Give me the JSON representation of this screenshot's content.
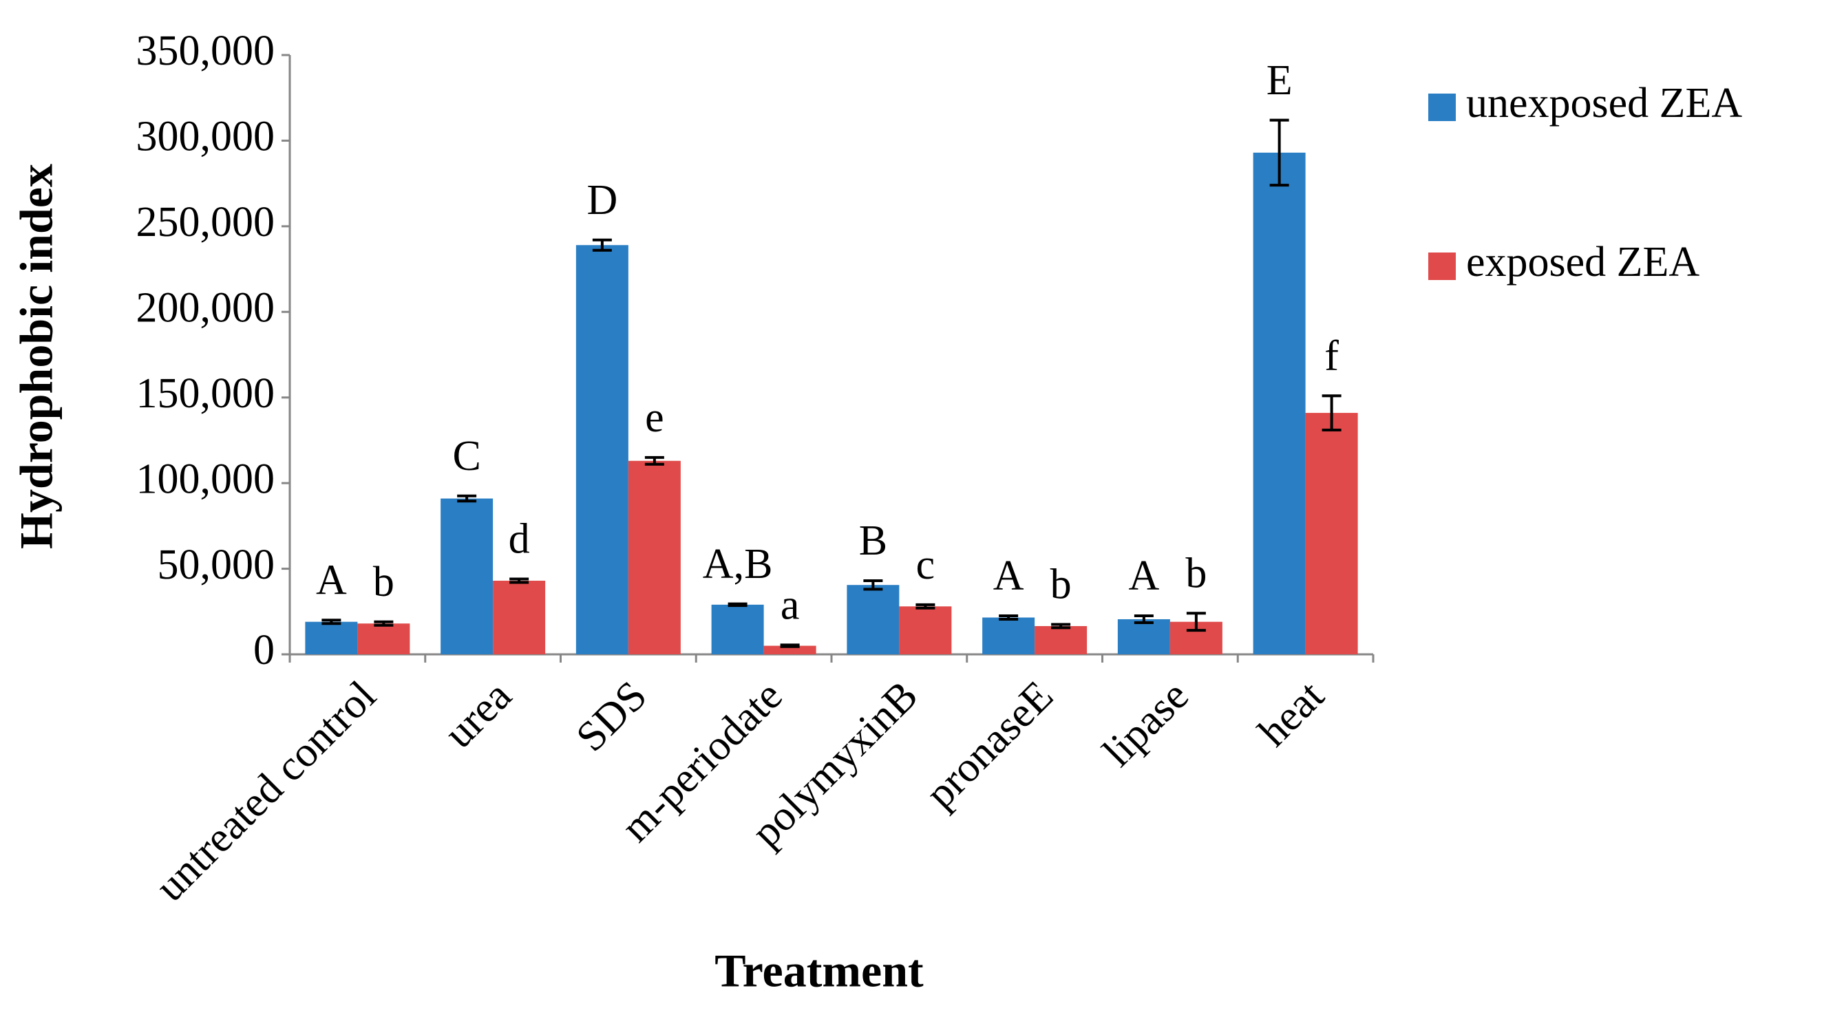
{
  "chart_data": {
    "type": "bar",
    "x_label": "Treatment",
    "y_label": "Hydrophobic index",
    "categories": [
      "untreated control",
      "urea",
      "SDS",
      "m-periodate",
      "polymyxinB",
      "pronaseE",
      "lipase",
      "heat"
    ],
    "series": [
      {
        "name": "unexposed ZEA",
        "color": "#2a7fc4",
        "values": [
          19000,
          91000,
          239000,
          29000,
          40500,
          21500,
          20500,
          293000
        ],
        "errors": [
          1000,
          1500,
          3000,
          500,
          2500,
          1000,
          2000,
          19000
        ],
        "letters": [
          "A",
          "C",
          "D",
          "A,B",
          "B",
          "A",
          "A",
          "E"
        ]
      },
      {
        "name": "exposed ZEA",
        "color": "#e04a4a",
        "values": [
          18000,
          43000,
          113000,
          5000,
          28000,
          16500,
          19000,
          141000
        ],
        "errors": [
          1000,
          1000,
          2000,
          500,
          1000,
          1000,
          5000,
          10000
        ],
        "letters": [
          "b",
          "d",
          "e",
          "a",
          "c",
          "b",
          "b",
          "f"
        ]
      }
    ],
    "ylim": [
      0,
      350000
    ],
    "yticks": [
      0,
      {
        "value": 50000,
        "label": "50,000"
      },
      {
        "value": 100000,
        "label": "100,000"
      },
      {
        "value": 150000,
        "label": "150,000"
      },
      {
        "value": 200000,
        "label": "200,000"
      },
      {
        "value": 250000,
        "label": "250,000"
      },
      {
        "value": 300000,
        "label": "300,000"
      },
      {
        "value": 350000,
        "label": "350,000"
      }
    ],
    "legend": "right"
  }
}
